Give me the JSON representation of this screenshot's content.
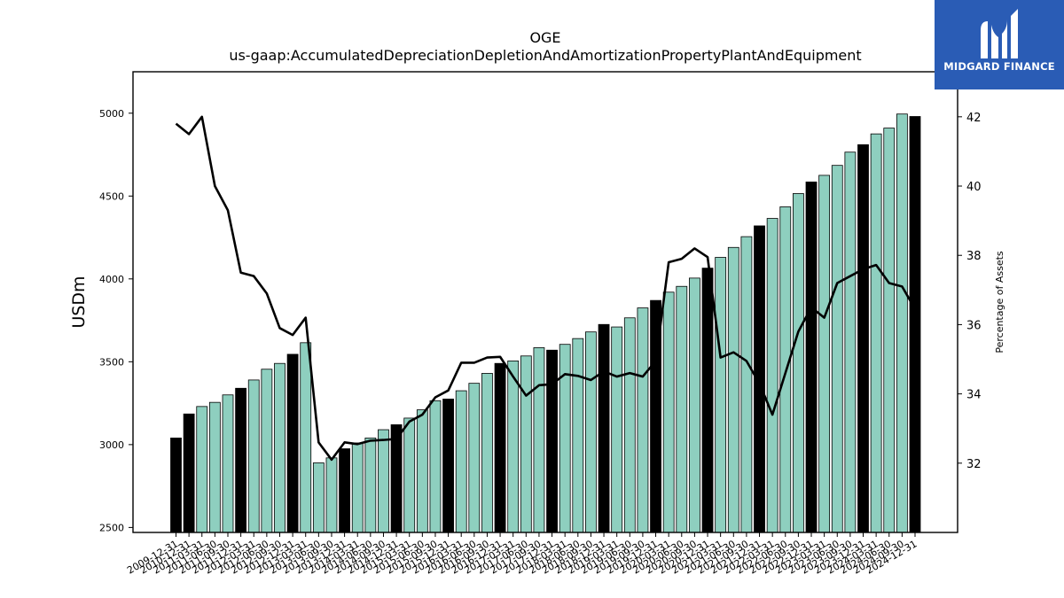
{
  "logo": {
    "brand": "MIDGARD FINANCE",
    "icon": "midgard-mark-icon",
    "color": "#2a5cb5"
  },
  "chart_data": {
    "type": "bar",
    "title": "OGE",
    "subtitle": "us-gaap:AccumulatedDepreciationDepletionAndAmortizationPropertyPlantAndEquipment",
    "ylabel": "USDm",
    "y2label": "Percentage of Assets",
    "ylim": [
      2470,
      5250
    ],
    "y2lim": [
      30.0,
      43.3
    ],
    "yticks": [
      2500,
      3000,
      3500,
      4000,
      4500,
      5000
    ],
    "y2ticks": [
      32,
      34,
      36,
      38,
      40,
      42
    ],
    "colors": {
      "bar_quarter": "#8ecfbf",
      "bar_annual": "#000000",
      "line": "#000000"
    },
    "categories": [
      "2009-12-31",
      "2010-12-31",
      "2011-03-31",
      "2011-06-30",
      "2011-09-30",
      "2011-12-31",
      "2012-03-31",
      "2012-06-30",
      "2012-09-30",
      "2012-12-31",
      "2013-03-31",
      "2013-06-30",
      "2013-09-30",
      "2013-12-31",
      "2014-03-31",
      "2014-06-30",
      "2014-09-30",
      "2014-12-31",
      "2015-03-31",
      "2015-06-30",
      "2015-09-30",
      "2015-12-31",
      "2016-03-31",
      "2016-06-30",
      "2016-09-30",
      "2016-12-31",
      "2017-03-31",
      "2017-06-30",
      "2017-09-30",
      "2017-12-31",
      "2018-03-31",
      "2018-06-30",
      "2018-09-30",
      "2018-12-31",
      "2019-03-31",
      "2019-06-30",
      "2019-09-30",
      "2019-12-31",
      "2020-03-31",
      "2020-06-30",
      "2020-09-30",
      "2020-12-31",
      "2021-03-31",
      "2021-06-30",
      "2021-09-30",
      "2021-12-31",
      "2022-03-31",
      "2022-06-30",
      "2022-09-30",
      "2022-12-31",
      "2023-03-31",
      "2023-06-30",
      "2023-09-30",
      "2023-12-31",
      "2024-03-31",
      "2024-06-30",
      "2024-09-30",
      "2024-12-31"
    ],
    "annual": [
      true,
      true,
      false,
      false,
      false,
      true,
      false,
      false,
      false,
      true,
      false,
      false,
      false,
      true,
      false,
      false,
      false,
      true,
      false,
      false,
      false,
      true,
      false,
      false,
      false,
      true,
      false,
      false,
      false,
      true,
      false,
      false,
      false,
      true,
      false,
      false,
      false,
      true,
      false,
      false,
      false,
      true,
      false,
      false,
      false,
      true,
      false,
      false,
      false,
      true,
      false,
      false,
      false,
      true,
      false,
      false,
      false,
      true
    ],
    "series": [
      {
        "name": "",
        "kind": "bar",
        "values": [
          3040,
          3185,
          3230,
          3255,
          3300,
          3340,
          3390,
          3455,
          3490,
          3545,
          3615,
          2890,
          2920,
          2975,
          3010,
          3040,
          3090,
          3120,
          3160,
          3210,
          3265,
          3275,
          3325,
          3370,
          3430,
          3490,
          3505,
          3535,
          3585,
          3570,
          3605,
          3640,
          3680,
          3725,
          3710,
          3765,
          3825,
          3870,
          3920,
          3955,
          4005,
          4065,
          4130,
          4190,
          4255,
          4320,
          4365,
          4435,
          4515,
          4585,
          4625,
          4685,
          4765,
          4810,
          4875,
          4910,
          4995,
          4980
        ]
      },
      {
        "name": "",
        "kind": "line",
        "axis": "right",
        "values": [
          41.8,
          41.5,
          42.0,
          40.0,
          39.3,
          37.5,
          37.4,
          36.9,
          35.9,
          35.7,
          36.2,
          32.6,
          32.1,
          32.6,
          32.55,
          32.65,
          32.67,
          32.7,
          33.2,
          33.4,
          33.9,
          34.1,
          34.9,
          34.9,
          35.05,
          35.07,
          34.5,
          33.95,
          34.25,
          34.28,
          34.57,
          34.52,
          34.4,
          34.65,
          34.5,
          34.6,
          34.5,
          34.95,
          37.8,
          37.9,
          38.2,
          37.95,
          35.05,
          35.2,
          34.95,
          34.3,
          33.4,
          34.6,
          35.8,
          36.5,
          36.2,
          37.2,
          37.4,
          37.6,
          37.72,
          37.2,
          37.1,
          36.45
        ]
      }
    ]
  }
}
